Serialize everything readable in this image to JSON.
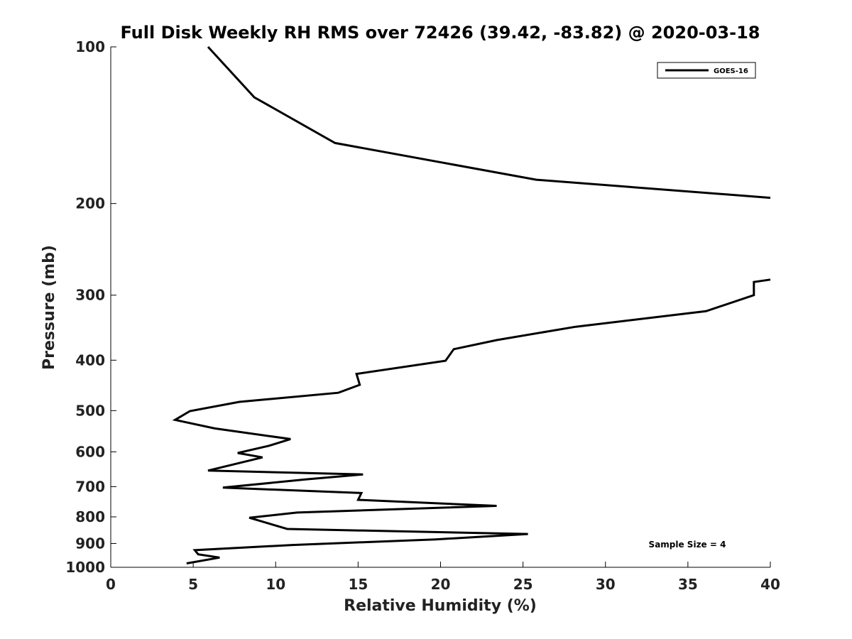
{
  "chart_data": {
    "type": "line",
    "title": "Full Disk Weekly RH RMS over 72426 (39.42, -83.82) @ 2020-03-18",
    "xlabel": "Relative Humidity (%)",
    "ylabel": "Pressure (mb)",
    "xlim": [
      0,
      40
    ],
    "ylim": [
      1000,
      100
    ],
    "y_scale": "log",
    "x_ticks": [
      0,
      5,
      10,
      15,
      20,
      25,
      30,
      35,
      40
    ],
    "y_ticks": [
      100,
      200,
      300,
      400,
      500,
      600,
      700,
      800,
      900,
      1000
    ],
    "grid": false,
    "legend_placement": "top-right",
    "annotation": "Sample Size = 4",
    "series": [
      {
        "name": "GOES-16",
        "color": "#000000",
        "segments": [
          [
            [
              5.9,
              100
            ],
            [
              8.7,
              125
            ],
            [
              13.6,
              153
            ],
            [
              25.8,
              180
            ],
            [
              40.0,
              195
            ]
          ],
          [
            [
              40.0,
              280
            ],
            [
              39.0,
              283
            ],
            [
              39.0,
              300
            ],
            [
              36.1,
              322
            ],
            [
              28.2,
              345
            ],
            [
              23.4,
              366
            ],
            [
              20.8,
              381
            ],
            [
              20.3,
              401
            ],
            [
              14.9,
              425
            ],
            [
              15.1,
              446
            ],
            [
              13.8,
              462
            ],
            [
              7.8,
              481
            ],
            [
              4.8,
              501
            ],
            [
              3.9,
              521
            ],
            [
              6.3,
              541
            ],
            [
              10.9,
              567
            ],
            [
              9.6,
              584
            ],
            [
              7.7,
              603
            ],
            [
              9.2,
              615
            ],
            [
              5.9,
              652
            ],
            [
              15.3,
              663
            ],
            [
              11.8,
              678
            ],
            [
              6.8,
              703
            ],
            [
              15.2,
              720
            ],
            [
              15.0,
              742
            ],
            [
              23.4,
              762
            ],
            [
              11.3,
              785
            ],
            [
              8.4,
              803
            ],
            [
              10.7,
              844
            ],
            [
              25.3,
              863
            ],
            [
              19.7,
              884
            ],
            [
              11.0,
              906
            ],
            [
              5.1,
              927
            ],
            [
              5.3,
              944
            ],
            [
              6.6,
              958
            ],
            [
              4.6,
              983
            ]
          ]
        ]
      }
    ]
  }
}
